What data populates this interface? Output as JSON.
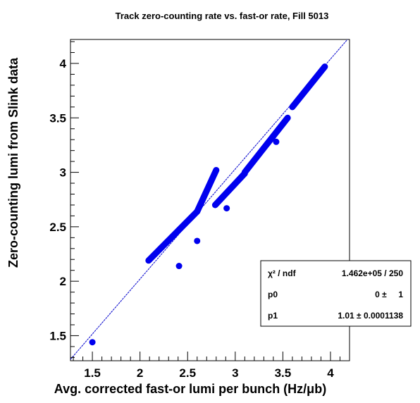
{
  "chart_data": {
    "type": "scatter",
    "title": "Track zero-counting rate vs. fast-or rate, Fill 5013",
    "xlabel": "Avg. corrected fast-or lumi per bunch (Hz/μb)",
    "ylabel": "Zero-counting lumi from Slink data",
    "xlim": [
      1.27,
      4.2
    ],
    "ylim": [
      1.27,
      4.22
    ],
    "x_ticks": [
      {
        "value": 1.5,
        "label": "1.5"
      },
      {
        "value": 2.0,
        "label": "2"
      },
      {
        "value": 2.5,
        "label": "2.5"
      },
      {
        "value": 3.0,
        "label": "3"
      },
      {
        "value": 3.5,
        "label": "3.5"
      },
      {
        "value": 4.0,
        "label": "4"
      }
    ],
    "y_ticks": [
      {
        "value": 1.5,
        "label": "1.5"
      },
      {
        "value": 2.0,
        "label": "2"
      },
      {
        "value": 2.5,
        "label": "2.5"
      },
      {
        "value": 3.0,
        "label": "3"
      },
      {
        "value": 3.5,
        "label": "3.5"
      },
      {
        "value": 4.0,
        "label": "4"
      }
    ],
    "series": [
      {
        "color": "#0000ee",
        "segments": [
          {
            "x0": 2.09,
            "y0": 2.19,
            "x1": 2.6,
            "y1": 2.64
          },
          {
            "x0": 2.6,
            "y0": 2.64,
            "x1": 2.8,
            "y1": 3.02
          },
          {
            "x0": 2.79,
            "y0": 2.7,
            "x1": 3.1,
            "y1": 2.99
          },
          {
            "x0": 3.1,
            "y0": 3.0,
            "x1": 3.55,
            "y1": 3.5
          },
          {
            "x0": 3.6,
            "y0": 3.6,
            "x1": 3.94,
            "y1": 3.97
          }
        ],
        "points": [
          {
            "x": 1.5,
            "y": 1.44
          },
          {
            "x": 2.41,
            "y": 2.14
          },
          {
            "x": 2.6,
            "y": 2.37
          },
          {
            "x": 2.91,
            "y": 2.67
          },
          {
            "x": 3.43,
            "y": 3.28
          }
        ]
      }
    ],
    "fit_line": {
      "p0": 0,
      "p1": 1.01,
      "color": "#0000cc"
    },
    "stats_box": {
      "rows": [
        {
          "label": "χ² / ndf",
          "value": "1.462e+05 / 250"
        },
        {
          "label": "p0",
          "value": "0 ±     1"
        },
        {
          "label": "p1",
          "value": "1.01 ± 0.0001138"
        }
      ]
    }
  }
}
